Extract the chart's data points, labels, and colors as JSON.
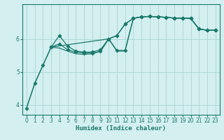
{
  "xlabel": "Humidex (Indice chaleur)",
  "bg_color": "#d4efef",
  "grid_color": "#aed8d8",
  "line_color": "#1a7a6e",
  "xlim": [
    -0.5,
    23.5
  ],
  "ylim": [
    3.7,
    7.05
  ],
  "yticks": [
    4,
    5,
    6
  ],
  "xticks": [
    0,
    1,
    2,
    3,
    4,
    5,
    6,
    7,
    8,
    9,
    10,
    11,
    12,
    13,
    14,
    15,
    16,
    17,
    18,
    19,
    20,
    21,
    22,
    23
  ],
  "line1": {
    "x": [
      0,
      1,
      2,
      3,
      10,
      11,
      12,
      13,
      14,
      15,
      16,
      17,
      18,
      19,
      20,
      21,
      22,
      23
    ],
    "y": [
      3.9,
      4.65,
      5.2,
      5.75,
      6.0,
      6.1,
      6.45,
      6.62,
      6.67,
      6.68,
      6.67,
      6.65,
      6.63,
      6.63,
      6.62,
      6.3,
      6.26,
      6.26
    ],
    "marker": true
  },
  "line2": {
    "x": [
      3,
      4,
      5,
      6,
      7,
      8,
      9,
      10,
      11,
      12,
      13,
      14,
      15,
      16,
      17,
      18,
      19,
      20,
      21,
      22,
      23
    ],
    "y": [
      5.75,
      6.1,
      5.78,
      5.63,
      5.6,
      5.6,
      5.67,
      6.0,
      6.1,
      6.45,
      6.62,
      6.67,
      6.68,
      6.67,
      6.65,
      6.63,
      6.63,
      6.62,
      6.3,
      6.26,
      6.26
    ],
    "marker": true
  },
  "line3": {
    "x": [
      3,
      4,
      5,
      6,
      7,
      8,
      9,
      10,
      11,
      12,
      13,
      14,
      15,
      16,
      17,
      18,
      19,
      20,
      21,
      22,
      23
    ],
    "y": [
      5.75,
      5.85,
      5.67,
      5.6,
      5.57,
      5.57,
      5.62,
      6.0,
      5.65,
      5.65,
      6.62,
      6.67,
      6.68,
      6.67,
      6.65,
      6.63,
      6.63,
      6.62,
      6.3,
      6.26,
      6.26
    ],
    "marker": true
  },
  "line4": {
    "x": [
      0,
      1,
      2,
      3,
      4,
      5,
      6,
      7,
      8,
      9,
      10,
      11,
      12,
      13,
      14,
      15,
      16,
      17,
      18,
      19,
      20,
      21,
      22,
      23
    ],
    "y": [
      3.9,
      4.65,
      5.2,
      5.75,
      5.72,
      5.63,
      5.55,
      5.53,
      5.55,
      5.62,
      6.0,
      5.63,
      5.63,
      6.62,
      6.67,
      6.68,
      6.67,
      6.65,
      6.63,
      6.63,
      6.62,
      6.3,
      6.26,
      6.26
    ],
    "marker": false
  }
}
